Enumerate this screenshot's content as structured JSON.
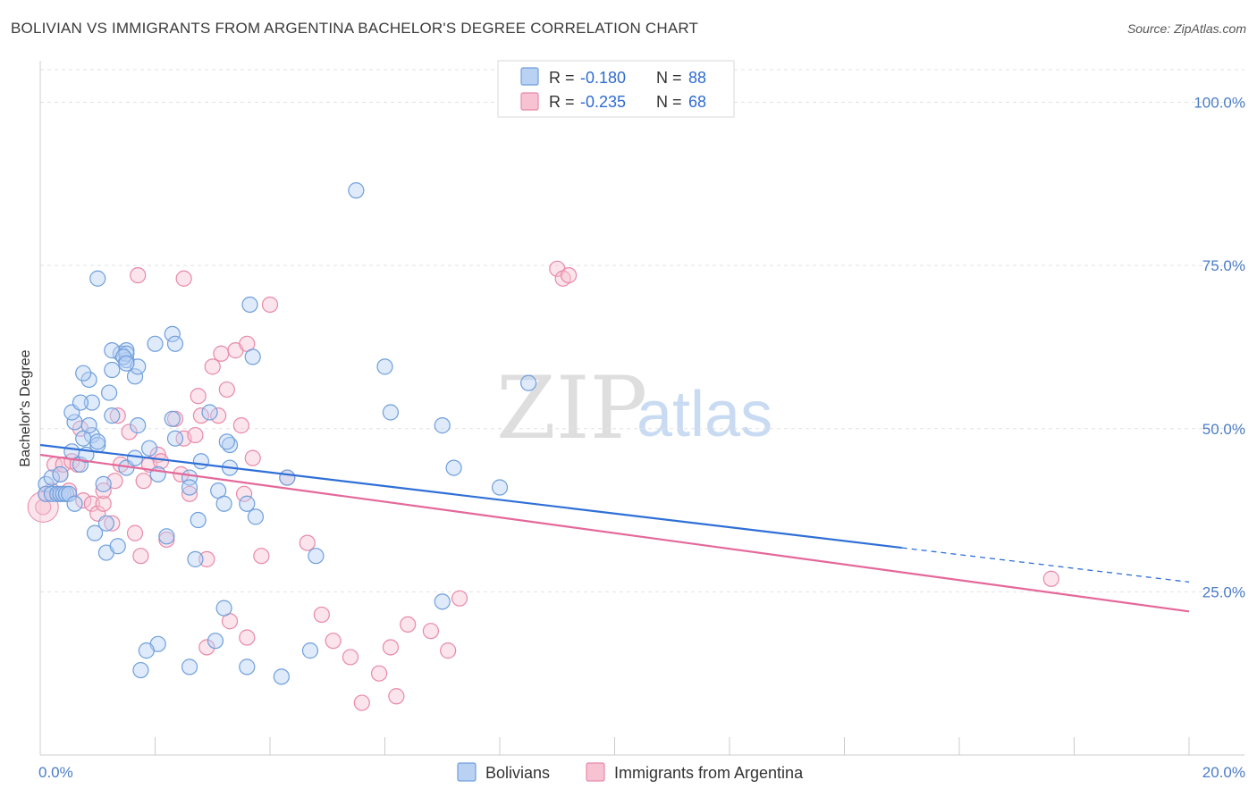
{
  "header": {
    "title": "BOLIVIAN VS IMMIGRANTS FROM ARGENTINA BACHELOR'S DEGREE CORRELATION CHART",
    "source": "Source: ZipAtlas.com"
  },
  "watermark": {
    "part1": "ZIP",
    "part2": "atlas"
  },
  "legend_top": {
    "rows": [
      {
        "r_label": "R =",
        "r_value": "-0.180",
        "n_label": "N =",
        "n_value": "88"
      },
      {
        "r_label": "R =",
        "r_value": "-0.235",
        "n_label": "N =",
        "n_value": "68"
      }
    ]
  },
  "legend_bottom": {
    "items": [
      {
        "label": "Bolivians"
      },
      {
        "label": "Immigrants from Argentina"
      }
    ]
  },
  "colors": {
    "blue_fill": "#b9d1f3",
    "blue_stroke": "#6f9fdc",
    "blue_line": "#2f6fd6",
    "pink_fill": "#f7c3d3",
    "pink_stroke": "#e889a8",
    "pink_line": "#e4689a",
    "tick_color": "#4a7cc7",
    "grid": "#e2e2e2"
  },
  "chart_data": {
    "type": "scatter",
    "title": "BOLIVIAN VS IMMIGRANTS FROM ARGENTINA BACHELOR'S DEGREE CORRELATION CHART",
    "xlabel": "",
    "ylabel": "Bachelor's Degree",
    "xlim": [
      0,
      20
    ],
    "ylim": [
      0,
      105
    ],
    "x_tick_labels": [
      "0.0%",
      "20.0%"
    ],
    "y_ticks": [
      25,
      50,
      75,
      100
    ],
    "y_tick_labels": [
      "25.0%",
      "50.0%",
      "75.0%",
      "100.0%"
    ],
    "grid": true,
    "legend_position": "top-center",
    "series": [
      {
        "name": "Bolivians",
        "color": "#6f9fdc",
        "R": -0.18,
        "N": 88,
        "trend": {
          "x0": 0,
          "y0": 47.5,
          "x_solid_end": 15,
          "x1": 20,
          "y1": 26.5
        },
        "points": [
          [
            0.1,
            41.5
          ],
          [
            0.1,
            40
          ],
          [
            0.2,
            40
          ],
          [
            0.3,
            40
          ],
          [
            0.35,
            40
          ],
          [
            0.4,
            40
          ],
          [
            0.45,
            40
          ],
          [
            0.5,
            40
          ],
          [
            0.2,
            42.5
          ],
          [
            0.35,
            43
          ],
          [
            0.6,
            38.5
          ],
          [
            0.55,
            46.5
          ],
          [
            0.7,
            44.5
          ],
          [
            0.8,
            46
          ],
          [
            0.6,
            51
          ],
          [
            0.55,
            52.5
          ],
          [
            0.9,
            49
          ],
          [
            0.75,
            48.5
          ],
          [
            1.0,
            47.5
          ],
          [
            0.85,
            50.5
          ],
          [
            1.0,
            48
          ],
          [
            0.9,
            54
          ],
          [
            0.7,
            54
          ],
          [
            1.1,
            41.5
          ],
          [
            1.15,
            35.5
          ],
          [
            0.95,
            34
          ],
          [
            1.25,
            52
          ],
          [
            1.2,
            55.5
          ],
          [
            1.25,
            59
          ],
          [
            1.4,
            61.5
          ],
          [
            1.5,
            60.5
          ],
          [
            1.25,
            62
          ],
          [
            1.5,
            62
          ],
          [
            1.65,
            58
          ],
          [
            0.85,
            57.5
          ],
          [
            0.75,
            58.5
          ],
          [
            1.5,
            61.5
          ],
          [
            1.45,
            61
          ],
          [
            1.7,
            59.5
          ],
          [
            2.0,
            63
          ],
          [
            2.3,
            64.5
          ],
          [
            2.35,
            63
          ],
          [
            1.5,
            60
          ],
          [
            1.5,
            44
          ],
          [
            1.65,
            45.5
          ],
          [
            1.7,
            50.5
          ],
          [
            1.9,
            47
          ],
          [
            2.05,
            43
          ],
          [
            2.3,
            51.5
          ],
          [
            2.35,
            48.5
          ],
          [
            2.6,
            42.5
          ],
          [
            2.6,
            41
          ],
          [
            2.75,
            36
          ],
          [
            2.8,
            45
          ],
          [
            2.95,
            52.5
          ],
          [
            3.1,
            40.5
          ],
          [
            3.3,
            47.5
          ],
          [
            3.25,
            48
          ],
          [
            3.3,
            44
          ],
          [
            3.2,
            38.5
          ],
          [
            3.6,
            38.5
          ],
          [
            3.75,
            36.5
          ],
          [
            3.7,
            61
          ],
          [
            3.65,
            69
          ],
          [
            5.5,
            86.5
          ],
          [
            6.0,
            59.5
          ],
          [
            6.1,
            52.5
          ],
          [
            7.0,
            50.5
          ],
          [
            7.2,
            44
          ],
          [
            8.0,
            41
          ],
          [
            8.5,
            57
          ],
          [
            1.0,
            73
          ],
          [
            2.7,
            30
          ],
          [
            1.15,
            31
          ],
          [
            1.35,
            32
          ],
          [
            2.2,
            33.5
          ],
          [
            2.05,
            17
          ],
          [
            1.85,
            16
          ],
          [
            2.6,
            13.5
          ],
          [
            1.75,
            13
          ],
          [
            3.2,
            22.5
          ],
          [
            3.05,
            17.5
          ],
          [
            3.6,
            13.5
          ],
          [
            4.2,
            12
          ],
          [
            4.7,
            16
          ],
          [
            4.8,
            30.5
          ],
          [
            4.3,
            42.5
          ],
          [
            7.0,
            23.5
          ]
        ]
      },
      {
        "name": "Immigrants from Argentina",
        "color": "#e889a8",
        "R": -0.235,
        "N": 68,
        "trend": {
          "x0": 0,
          "y0": 46,
          "x1": 20,
          "y1": 22
        },
        "points": [
          [
            0.05,
            38
          ],
          [
            0.1,
            40
          ],
          [
            0.2,
            40.5
          ],
          [
            0.25,
            44.5
          ],
          [
            0.35,
            43
          ],
          [
            0.4,
            44.5
          ],
          [
            0.5,
            40.5
          ],
          [
            0.55,
            45
          ],
          [
            0.65,
            44.5
          ],
          [
            0.7,
            50
          ],
          [
            0.75,
            39
          ],
          [
            0.9,
            38.5
          ],
          [
            1.0,
            37
          ],
          [
            1.1,
            38.5
          ],
          [
            1.1,
            40.5
          ],
          [
            1.25,
            35.5
          ],
          [
            1.3,
            42
          ],
          [
            1.35,
            52
          ],
          [
            1.4,
            44.5
          ],
          [
            1.55,
            49.5
          ],
          [
            1.65,
            34
          ],
          [
            1.75,
            30.5
          ],
          [
            1.8,
            42
          ],
          [
            1.9,
            44.5
          ],
          [
            2.05,
            46
          ],
          [
            2.1,
            45
          ],
          [
            2.2,
            33
          ],
          [
            2.35,
            51.5
          ],
          [
            2.45,
            43
          ],
          [
            2.5,
            48.5
          ],
          [
            2.6,
            40
          ],
          [
            2.7,
            49
          ],
          [
            2.75,
            55
          ],
          [
            2.8,
            52
          ],
          [
            2.9,
            30
          ],
          [
            3.0,
            59.5
          ],
          [
            3.1,
            52
          ],
          [
            3.15,
            61.5
          ],
          [
            3.25,
            56
          ],
          [
            3.4,
            62
          ],
          [
            3.5,
            50.5
          ],
          [
            3.55,
            40
          ],
          [
            3.6,
            63
          ],
          [
            3.7,
            45.5
          ],
          [
            3.85,
            30.5
          ],
          [
            2.5,
            73
          ],
          [
            1.7,
            73.5
          ],
          [
            4.0,
            69
          ],
          [
            4.3,
            42.5
          ],
          [
            4.65,
            32.5
          ],
          [
            4.9,
            21.5
          ],
          [
            5.1,
            17.5
          ],
          [
            5.4,
            15
          ],
          [
            5.6,
            8
          ],
          [
            5.9,
            12.5
          ],
          [
            6.1,
            16.5
          ],
          [
            6.2,
            9
          ],
          [
            6.4,
            20
          ],
          [
            6.8,
            19
          ],
          [
            7.1,
            16
          ],
          [
            3.3,
            20.5
          ],
          [
            3.6,
            18
          ],
          [
            2.9,
            16.5
          ],
          [
            7.3,
            24
          ],
          [
            9.0,
            74.5
          ],
          [
            9.1,
            73
          ],
          [
            9.2,
            73.5
          ],
          [
            17.6,
            27
          ]
        ]
      }
    ]
  }
}
